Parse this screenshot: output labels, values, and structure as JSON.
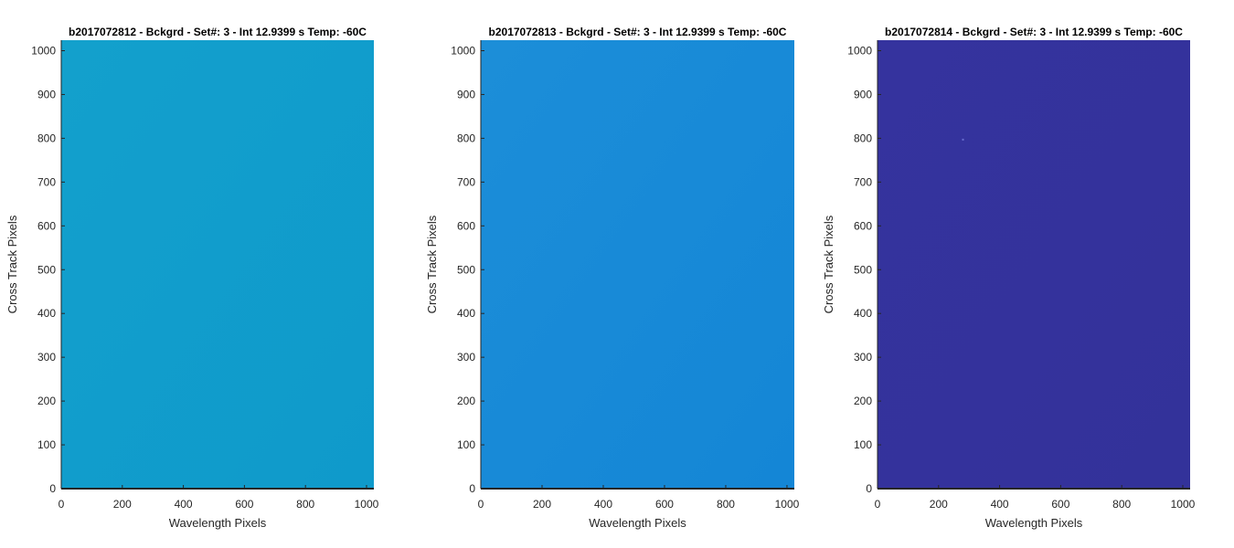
{
  "chart_data": [
    {
      "type": "heatmap",
      "title": "b2017072812 - Bckgrd - Set#: 3 - Int 12.9399 s Temp: -60C",
      "xlabel": "Wavelength Pixels",
      "ylabel": "Cross Track Pixels",
      "xlim": [
        0,
        1024
      ],
      "ylim": [
        0,
        1024
      ],
      "xticks": [
        0,
        200,
        400,
        600,
        800,
        1000
      ],
      "yticks": [
        0,
        100,
        200,
        300,
        400,
        500,
        600,
        700,
        800,
        900,
        1000
      ],
      "fill_color": "#13A0CC",
      "fill_color_edge": "#0F9ACB",
      "grid": false
    },
    {
      "type": "heatmap",
      "title": "b2017072813 - Bckgrd - Set#: 3 - Int 12.9399 s Temp: -60C",
      "xlabel": "Wavelength Pixels",
      "ylabel": "Cross Track Pixels",
      "xlim": [
        0,
        1024
      ],
      "ylim": [
        0,
        1024
      ],
      "xticks": [
        0,
        200,
        400,
        600,
        800,
        1000
      ],
      "yticks": [
        0,
        100,
        200,
        300,
        400,
        500,
        600,
        700,
        800,
        900,
        1000
      ],
      "fill_color": "#1C8ED8",
      "fill_color_edge": "#1486D6",
      "grid": false
    },
    {
      "type": "heatmap",
      "title": "b2017072814 - Bckgrd - Set#: 3 - Int 12.9399 s Temp: -60C",
      "xlabel": "Wavelength Pixels",
      "ylabel": "Cross Track Pixels",
      "xlim": [
        0,
        1024
      ],
      "ylim": [
        0,
        1024
      ],
      "xticks": [
        0,
        200,
        400,
        600,
        800,
        1000
      ],
      "yticks": [
        0,
        100,
        200,
        300,
        400,
        500,
        600,
        700,
        800,
        900,
        1000
      ],
      "fill_color": "#35339E",
      "fill_color_edge": "#33329A",
      "hot_pixel": {
        "x": 280,
        "y": 797,
        "color": "#6A6FD0"
      },
      "grid": false
    }
  ]
}
